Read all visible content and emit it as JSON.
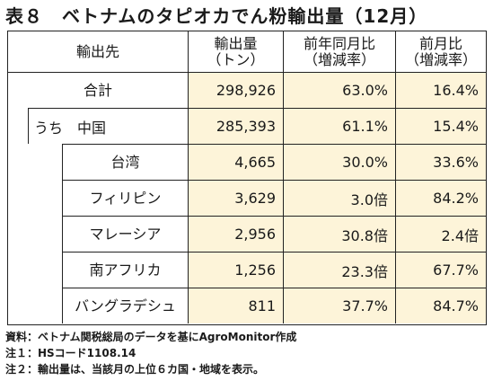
{
  "title": "表８　ベトナムのタピオカでん粉輸出量（12月）",
  "header": {
    "col1": "輸出先",
    "col2_line1": "輸出量",
    "col2_line2": "（トン）",
    "col3_line1": "前年同月比",
    "col3_line2": "（増減率）",
    "col4_line1": "前月比",
    "col4_line2": "（増減率）"
  },
  "rows": [
    {
      "label": "合計",
      "volume": "298,926",
      "yoy": "63.0%",
      "mom": "16.4%"
    },
    {
      "label": "うち　中国",
      "volume": "285,393",
      "yoy": "61.1%",
      "mom": "15.4%"
    },
    {
      "label": "台湾",
      "volume": "4,665",
      "yoy": "30.0%",
      "mom": "33.6%"
    },
    {
      "label": "フィリピン",
      "volume": "3,629",
      "yoy": "3.0倍",
      "mom": "84.2%"
    },
    {
      "label": "マレーシア",
      "volume": "2,956",
      "yoy": "30.8倍",
      "mom": "2.4倍"
    },
    {
      "label": "南アフリカ",
      "volume": "1,256",
      "yoy": "23.3倍",
      "mom": "67.7%"
    },
    {
      "label": "バングラデシュ",
      "volume": "811",
      "yoy": "37.7%",
      "mom": "84.7%"
    }
  ],
  "notes": [
    "資料：ベトナム関税総局のデータを基にAgroMonitor作成",
    "注１：HSコード1108.14",
    "注２：輸出量は、当該月の上位６カ国・地域を表示。"
  ]
}
